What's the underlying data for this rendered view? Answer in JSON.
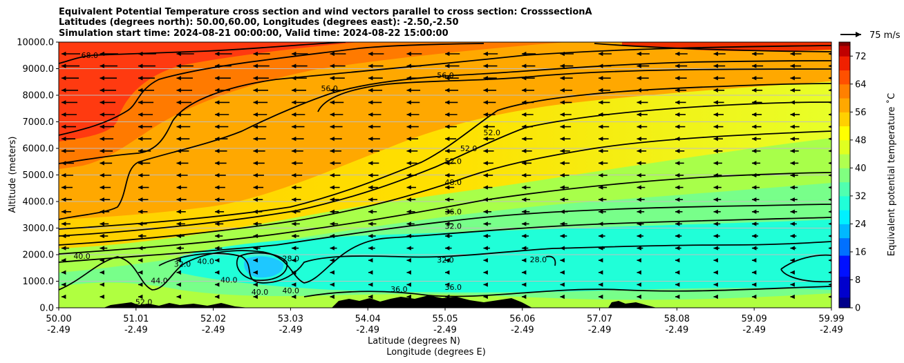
{
  "chart_data": {
    "type": "heatmap",
    "title_lines": [
      "Equivalent Potential Temperature cross section and wind vectors parallel to cross section: CrosssectionA",
      "Latitudes (degrees north): 50.00,60.00, Longitudes (degrees east): -2.50,-2.50",
      "Simulation start time: 2024-08-21 00:00:00, Valid time: 2024-08-22 15:00:00"
    ],
    "xlabel_lat": "Latitude (degrees N)",
    "xlabel_lon": "Longitude (degrees E)",
    "ylabel": "Altitude (meters)",
    "x_ticks": [
      {
        "lat": "50.00",
        "lon": "-2.49"
      },
      {
        "lat": "51.01",
        "lon": "-2.49"
      },
      {
        "lat": "52.02",
        "lon": "-2.49"
      },
      {
        "lat": "53.03",
        "lon": "-2.49"
      },
      {
        "lat": "54.04",
        "lon": "-2.49"
      },
      {
        "lat": "55.05",
        "lon": "-2.49"
      },
      {
        "lat": "56.06",
        "lon": "-2.49"
      },
      {
        "lat": "57.07",
        "lon": "-2.49"
      },
      {
        "lat": "58.08",
        "lon": "-2.49"
      },
      {
        "lat": "59.09",
        "lon": "-2.49"
      },
      {
        "lat": "59.99",
        "lon": "-2.49"
      }
    ],
    "y_ticks": [
      "0.0",
      "1000.0",
      "2000.0",
      "3000.0",
      "4000.0",
      "5000.0",
      "6000.0",
      "7000.0",
      "8000.0",
      "9000.0",
      "10000.0"
    ],
    "ylim": [
      0,
      10000
    ],
    "xlim": [
      50.0,
      59.99
    ],
    "colorbar": {
      "label": "Equivalent potential temperature $^\\circ$C",
      "label_display": "Equivalent potential temperature ˚C",
      "ticks": [
        "0",
        "8",
        "16",
        "24",
        "32",
        "40",
        "48",
        "56",
        "64",
        "72"
      ],
      "range": [
        0,
        76
      ]
    },
    "quiver_key": "75 m/s",
    "contours": [
      {
        "label": "68.0",
        "x": 50.4,
        "y": 9400
      },
      {
        "label": "56.0",
        "x": 53.5,
        "y": 8150
      },
      {
        "label": "56.0",
        "x": 55.0,
        "y": 8650
      },
      {
        "label": "52.0",
        "x": 55.1,
        "y": 5420
      },
      {
        "label": "52.0",
        "x": 55.3,
        "y": 5900
      },
      {
        "label": "52.0",
        "x": 55.6,
        "y": 6500
      },
      {
        "label": "48.0",
        "x": 55.1,
        "y": 4620
      },
      {
        "label": "36.0",
        "x": 55.1,
        "y": 3520
      },
      {
        "label": "32.0",
        "x": 55.1,
        "y": 2980
      },
      {
        "label": "32.0",
        "x": 55.0,
        "y": 1700
      },
      {
        "label": "36.0",
        "x": 55.1,
        "y": 680
      },
      {
        "label": "28.0",
        "x": 56.2,
        "y": 1720
      },
      {
        "label": "40.0",
        "x": 50.3,
        "y": 1850
      },
      {
        "label": "44.0",
        "x": 51.3,
        "y": 920
      },
      {
        "label": "32.0",
        "x": 51.6,
        "y": 1550
      },
      {
        "label": "40.0",
        "x": 51.9,
        "y": 1650
      },
      {
        "label": "40.0",
        "x": 52.2,
        "y": 950
      },
      {
        "label": "40.0",
        "x": 52.6,
        "y": 500
      },
      {
        "label": "28.0",
        "x": 53.0,
        "y": 1750
      },
      {
        "label": "40.0",
        "x": 53.0,
        "y": 550
      },
      {
        "label": "52.0",
        "x": 51.1,
        "y": 120
      },
      {
        "label": "36.0",
        "x": 54.4,
        "y": 600
      }
    ],
    "colors": {
      "top_band": "#e8340a",
      "warm": "#ff9a00",
      "mid": "#f6f200",
      "cool": "#8cff6e",
      "cold": "#00f2f2",
      "coldest": "#1ec8ff",
      "terrain": "#000000"
    }
  }
}
